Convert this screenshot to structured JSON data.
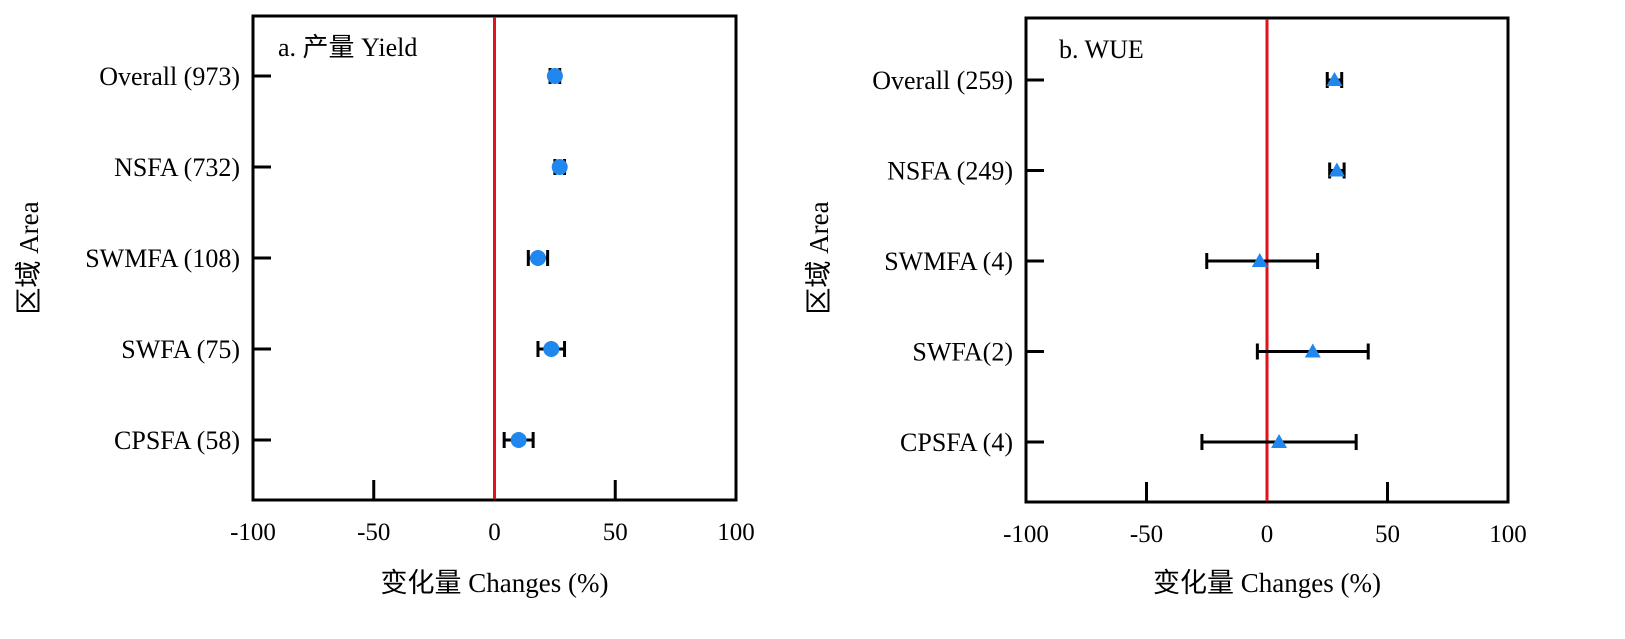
{
  "chart_data": [
    {
      "type": "scatter",
      "panel_label": "a. 产量 Yield",
      "xlabel": "变化量 Changes (%)",
      "ylabel": "区域 Area",
      "xlim": [
        -100,
        100
      ],
      "x_ticks": [
        -100,
        -50,
        0,
        50,
        100
      ],
      "reference_line_x": 0,
      "marker": "circle",
      "categories": [
        "Overall (973)",
        "NSFA (732)",
        "SWMFA (108)",
        "SWFA (75)",
        "CPSFA (58)"
      ],
      "values": [
        25,
        27,
        18,
        23.5,
        10
      ],
      "ci_low": [
        23,
        25,
        14,
        18,
        4
      ],
      "ci_high": [
        27,
        29,
        22,
        29,
        16
      ]
    },
    {
      "type": "scatter",
      "panel_label": "b. WUE",
      "xlabel": "变化量 Changes (%)",
      "ylabel": "区域 Area",
      "xlim": [
        -100,
        100
      ],
      "x_ticks": [
        -100,
        -50,
        0,
        50,
        100
      ],
      "reference_line_x": 0,
      "marker": "triangle",
      "categories": [
        "Overall (259)",
        "NSFA (249)",
        "SWMFA (4)",
        "SWFA(2)",
        "CPSFA (4)"
      ],
      "values": [
        28,
        29,
        -3,
        19,
        5
      ],
      "ci_low": [
        25,
        26,
        -25,
        -4,
        -27
      ],
      "ci_high": [
        31,
        32,
        21,
        42,
        37
      ]
    }
  ],
  "colors": {
    "marker": "#1f87ee",
    "reference_line": "#e3111b",
    "axis": "#000000"
  }
}
